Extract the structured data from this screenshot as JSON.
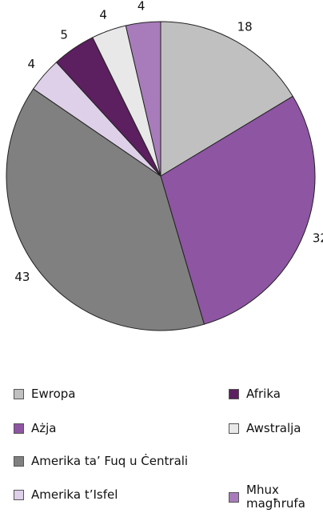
{
  "chart_data": {
    "type": "pie",
    "start": "top",
    "direction": "clockwise",
    "slices": [
      {
        "label": "Ewropa",
        "value": 18,
        "color": "#c0c0c0"
      },
      {
        "label": "Ażja",
        "value": 32,
        "color": "#8e55a3"
      },
      {
        "label": "Amerika ta’ Fuq u Ċentrali",
        "value": 43,
        "color": "#808080"
      },
      {
        "label": "Amerika t’Isfel",
        "value": 4,
        "color": "#ddd0e8"
      },
      {
        "label": "Afrika",
        "value": 5,
        "color": "#5c1f5f"
      },
      {
        "label": "Awstralja",
        "value": 4,
        "color": "#e8e8e8"
      },
      {
        "label": "Mhux magħrufa",
        "value": 4,
        "color": "#a87cba"
      }
    ],
    "legend_position": "bottom"
  }
}
